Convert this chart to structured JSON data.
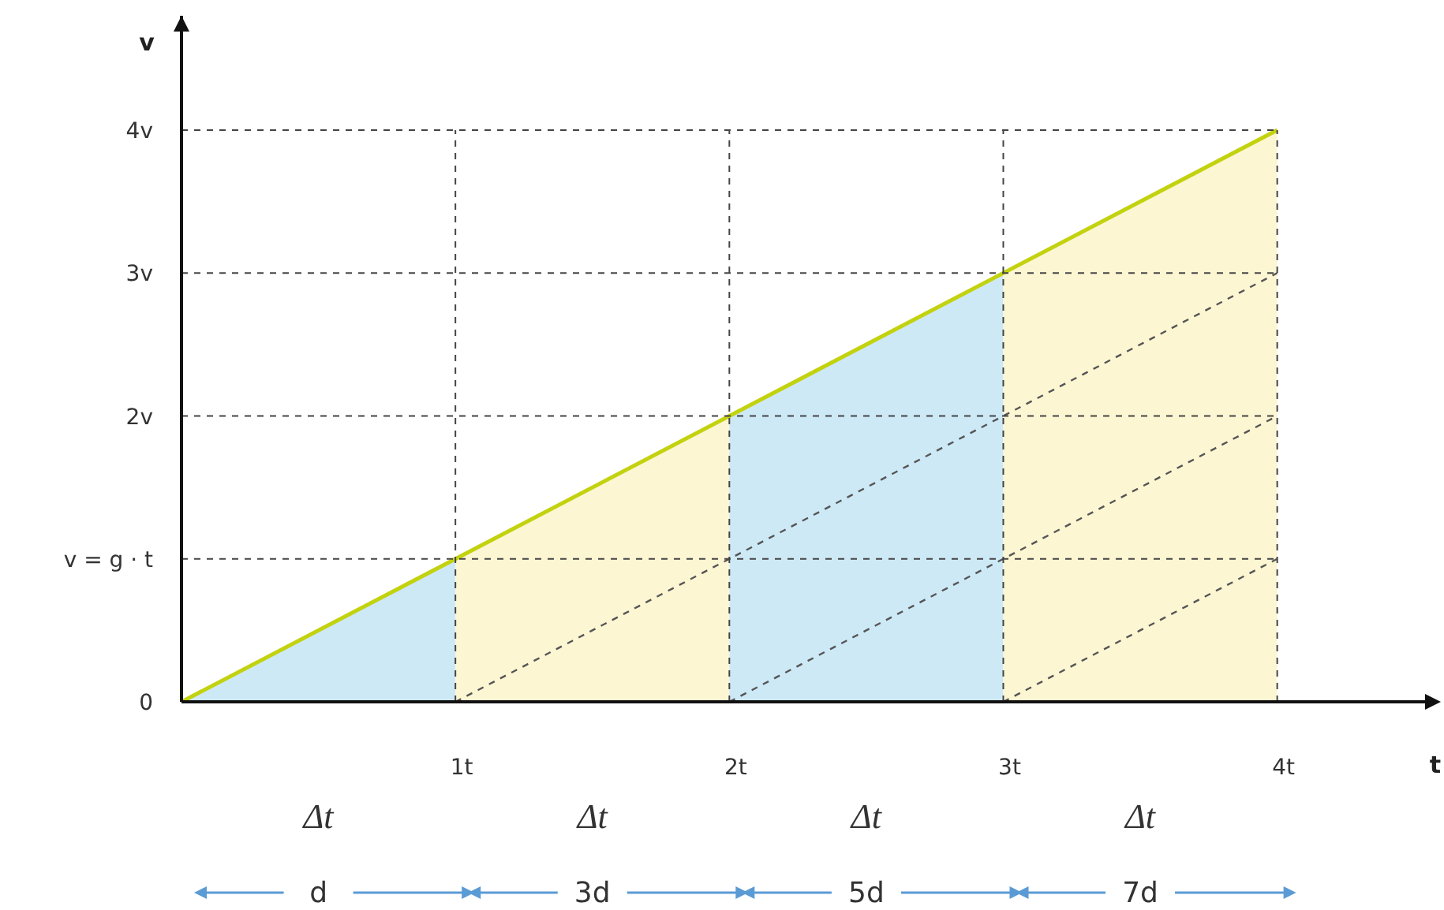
{
  "chart_data": {
    "type": "line",
    "xlabel": "t",
    "ylabel": "v",
    "xlim": [
      0,
      4.58
    ],
    "ylim": [
      0,
      4.8
    ],
    "xticks": [
      {
        "value": 1,
        "label": "1t"
      },
      {
        "value": 2,
        "label": "2t"
      },
      {
        "value": 3,
        "label": "3t"
      },
      {
        "value": 4,
        "label": "4t"
      }
    ],
    "yticks": [
      {
        "value": 0,
        "label": "0"
      },
      {
        "value": 1,
        "label": "v = g · t"
      },
      {
        "value": 2,
        "label": "2v"
      },
      {
        "value": 3,
        "label": "3v"
      },
      {
        "value": 4,
        "label": "4v"
      }
    ],
    "grid": true,
    "marker": "none",
    "series": [
      {
        "type": "area",
        "color": "#cde9f6",
        "x": [
          0,
          1
        ],
        "values": [
          0,
          1
        ]
      },
      {
        "type": "area",
        "color": "#fdf6d3",
        "x": [
          1,
          2
        ],
        "values": [
          1,
          2
        ]
      },
      {
        "type": "area",
        "color": "#cde9f6",
        "x": [
          2,
          3
        ],
        "values": [
          2,
          3
        ]
      },
      {
        "type": "area",
        "color": "#fdf6d3",
        "x": [
          3,
          4
        ],
        "values": [
          3,
          4
        ]
      },
      {
        "color": "#555555",
        "line_style": "dashed",
        "x": [
          1,
          4
        ],
        "values": [
          0,
          3
        ]
      },
      {
        "color": "#555555",
        "line_style": "dashed",
        "x": [
          2,
          4
        ],
        "values": [
          0,
          2
        ]
      },
      {
        "color": "#555555",
        "line_style": "dashed",
        "x": [
          3,
          4
        ],
        "values": [
          0,
          1
        ]
      },
      {
        "color": "#c3d20f",
        "x": [
          0,
          4
        ],
        "values": [
          0,
          4
        ]
      }
    ],
    "annotations": [
      "Δt",
      "Δt",
      "Δt",
      "Δt",
      "d",
      "3d",
      "5d",
      "7d"
    ]
  }
}
